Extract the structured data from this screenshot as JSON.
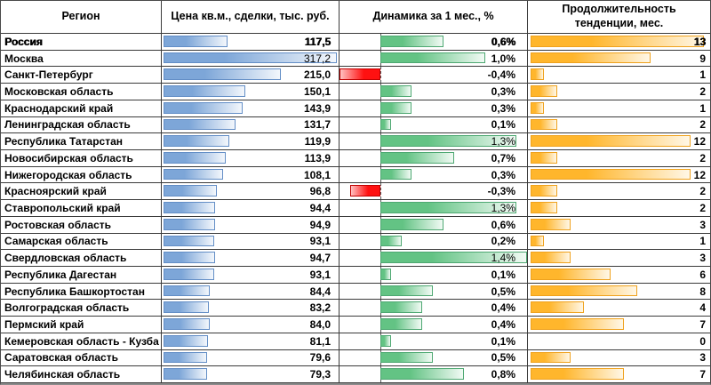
{
  "chart_data": {
    "type": "table",
    "title": "",
    "columns": [
      "Регион",
      "Цена кв.м., сделки, тыс. руб.",
      "Динамика за 1 мес., %",
      "Продолжительность тенденции, мес."
    ],
    "legend_position": "none",
    "grid": true,
    "rows": [
      {
        "region": "Россия",
        "price": "117,5",
        "price_val": 117.5,
        "pct": "0,6%",
        "pct_val": 0.6,
        "dur": "13",
        "dur_val": 13,
        "heavy": true
      },
      {
        "region": "Москва",
        "price": "317,2",
        "price_val": 317.2,
        "pct": "1,0%",
        "pct_val": 1.0,
        "dur": "9",
        "dur_val": 9,
        "price_light": true
      },
      {
        "region": "Санкт-Петербург",
        "price": "215,0",
        "price_val": 215.0,
        "pct": "-0,4%",
        "pct_val": -0.4,
        "dur": "1",
        "dur_val": 1
      },
      {
        "region": "Московская область",
        "price": "150,1",
        "price_val": 150.1,
        "pct": "0,3%",
        "pct_val": 0.3,
        "dur": "2",
        "dur_val": 2
      },
      {
        "region": "Краснодарский край",
        "price": "143,9",
        "price_val": 143.9,
        "pct": "0,3%",
        "pct_val": 0.3,
        "dur": "1",
        "dur_val": 1
      },
      {
        "region": "Ленинградская область",
        "price": "131,7",
        "price_val": 131.7,
        "pct": "0,1%",
        "pct_val": 0.1,
        "dur": "2",
        "dur_val": 2
      },
      {
        "region": "Республика Татарстан",
        "price": "119,9",
        "price_val": 119.9,
        "pct": "1,3%",
        "pct_val": 1.3,
        "dur": "12",
        "dur_val": 12,
        "pct_light": true
      },
      {
        "region": "Новосибирская область",
        "price": "113,9",
        "price_val": 113.9,
        "pct": "0,7%",
        "pct_val": 0.7,
        "dur": "2",
        "dur_val": 2
      },
      {
        "region": "Нижегородская область",
        "price": "108,1",
        "price_val": 108.1,
        "pct": "0,3%",
        "pct_val": 0.3,
        "dur": "12",
        "dur_val": 12
      },
      {
        "region": "Красноярский край",
        "price": "96,8",
        "price_val": 96.8,
        "pct": "-0,3%",
        "pct_val": -0.3,
        "dur": "2",
        "dur_val": 2
      },
      {
        "region": "Ставропольский край",
        "price": "94,4",
        "price_val": 94.4,
        "pct": "1,3%",
        "pct_val": 1.3,
        "dur": "2",
        "dur_val": 2,
        "pct_light": true
      },
      {
        "region": "Ростовская область",
        "price": "94,9",
        "price_val": 94.9,
        "pct": "0,6%",
        "pct_val": 0.6,
        "dur": "3",
        "dur_val": 3
      },
      {
        "region": "Самарская область",
        "price": "93,1",
        "price_val": 93.1,
        "pct": "0,2%",
        "pct_val": 0.2,
        "dur": "1",
        "dur_val": 1
      },
      {
        "region": "Свердловская область",
        "price": "94,7",
        "price_val": 94.7,
        "pct": "1,4%",
        "pct_val": 1.4,
        "dur": "3",
        "dur_val": 3,
        "pct_light": true
      },
      {
        "region": "Республика Дагестан",
        "price": "93,1",
        "price_val": 93.1,
        "pct": "0,1%",
        "pct_val": 0.1,
        "dur": "6",
        "dur_val": 6
      },
      {
        "region": "Республика Башкортостан",
        "price": "84,4",
        "price_val": 84.4,
        "pct": "0,5%",
        "pct_val": 0.5,
        "dur": "8",
        "dur_val": 8
      },
      {
        "region": "Волгоградская область",
        "price": "83,2",
        "price_val": 83.2,
        "pct": "0,4%",
        "pct_val": 0.4,
        "dur": "4",
        "dur_val": 4
      },
      {
        "region": "Пермский край",
        "price": "84,0",
        "price_val": 84.0,
        "pct": "0,4%",
        "pct_val": 0.4,
        "dur": "7",
        "dur_val": 7
      },
      {
        "region": "Кемеровская область - Кузба",
        "price": "81,1",
        "price_val": 81.1,
        "pct": "0,1%",
        "pct_val": 0.1,
        "dur": "0",
        "dur_val": 0
      },
      {
        "region": "Саратовская область",
        "price": "79,6",
        "price_val": 79.6,
        "pct": "0,5%",
        "pct_val": 0.5,
        "dur": "3",
        "dur_val": 3
      },
      {
        "region": "Челябинская область",
        "price": "79,3",
        "price_val": 79.3,
        "pct": "0,8%",
        "pct_val": 0.8,
        "dur": "7",
        "dur_val": 7
      }
    ],
    "axis_ranges": {
      "price_bar": [
        0,
        317.2
      ],
      "pct_bar": [
        -0.4,
        1.4
      ],
      "dur_bar": [
        0,
        13
      ]
    },
    "colors": {
      "price_bar_fill": "#7DA6D8",
      "price_bar_border": "#638EC6",
      "pct_positive_fill": "#63C384",
      "pct_positive_border": "#4EA872",
      "pct_negative_fill": "#FF1111",
      "pct_negative_border": "#C00000",
      "dur_bar_fill": "#FFB62C",
      "dur_bar_border": "#EFA21E",
      "grid_border": "#3A3A3A",
      "text": "#000000"
    }
  }
}
